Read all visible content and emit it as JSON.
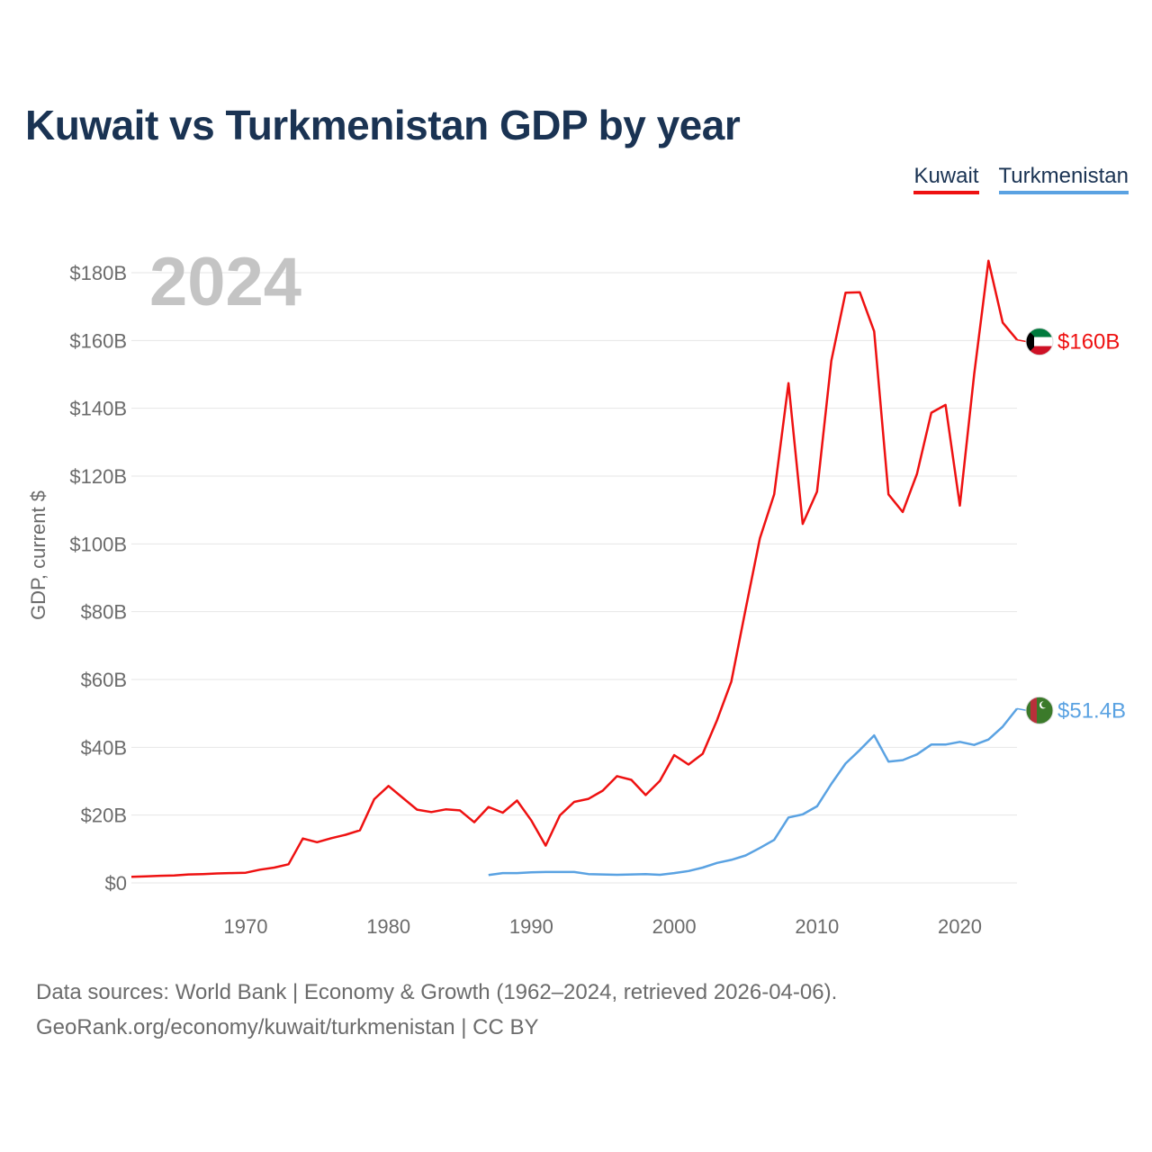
{
  "title": "Kuwait vs Turkmenistan GDP by year",
  "legend": [
    {
      "name": "Kuwait",
      "color": "#ee1111"
    },
    {
      "name": "Turkmenistan",
      "color": "#5aa2e2"
    }
  ],
  "year_label": "2024",
  "footer": {
    "line1": "Data sources: World Bank | Economy & Growth (1962–2024, retrieved 2026-04-06).",
    "line2": "GeoRank.org/economy/kuwait/turkmenistan | CC BY"
  },
  "chart_data": {
    "type": "line",
    "title": "Kuwait vs Turkmenistan GDP by year",
    "xlabel": "",
    "ylabel": "GDP, current $",
    "xlim": [
      1962,
      2024
    ],
    "ylim": [
      0,
      180
    ],
    "grid": true,
    "legend_position": "top-right",
    "x_ticks": [
      1970,
      1980,
      1990,
      2000,
      2010,
      2020
    ],
    "y_ticks": [
      0,
      20,
      40,
      60,
      80,
      100,
      120,
      140,
      160,
      180
    ],
    "y_tick_labels": [
      "$0",
      "$20B",
      "$40B",
      "$60B",
      "$80B",
      "$100B",
      "$120B",
      "$140B",
      "$160B",
      "$180B"
    ],
    "series": [
      {
        "name": "Kuwait",
        "color": "#ee1111",
        "end_label": "$160B",
        "x": [
          1962,
          1963,
          1964,
          1965,
          1966,
          1967,
          1968,
          1969,
          1970,
          1971,
          1972,
          1973,
          1974,
          1975,
          1976,
          1977,
          1978,
          1979,
          1980,
          1981,
          1982,
          1983,
          1984,
          1985,
          1986,
          1987,
          1988,
          1989,
          1990,
          1991,
          1992,
          1993,
          1994,
          1995,
          1996,
          1997,
          1998,
          1999,
          2000,
          2001,
          2002,
          2003,
          2004,
          2005,
          2006,
          2007,
          2008,
          2009,
          2010,
          2011,
          2012,
          2013,
          2014,
          2015,
          2016,
          2017,
          2018,
          2019,
          2020,
          2021,
          2022,
          2023,
          2024
        ],
        "values": [
          1.8,
          1.9,
          2.1,
          2.2,
          2.5,
          2.6,
          2.8,
          2.9,
          3.0,
          3.9,
          4.5,
          5.5,
          13.1,
          12.0,
          13.2,
          14.2,
          15.5,
          24.7,
          28.6,
          25.1,
          21.6,
          20.9,
          21.7,
          21.4,
          17.9,
          22.4,
          20.7,
          24.3,
          18.4,
          11.0,
          19.9,
          23.9,
          24.8,
          27.2,
          31.5,
          30.4,
          25.9,
          30.1,
          37.7,
          34.9,
          38.1,
          48.0,
          59.4,
          80.8,
          101.6,
          114.6,
          147.4,
          105.9,
          115.4,
          154.0,
          174.1,
          174.2,
          162.7,
          114.6,
          109.4,
          120.7,
          138.7,
          141.0,
          111.3,
          150.0,
          183.5,
          165.3,
          160.2
        ]
      },
      {
        "name": "Turkmenistan",
        "color": "#5aa2e2",
        "end_label": "$51.4B",
        "x": [
          1987,
          1988,
          1989,
          1990,
          1991,
          1992,
          1993,
          1994,
          1995,
          1996,
          1997,
          1998,
          1999,
          2000,
          2001,
          2002,
          2003,
          2004,
          2005,
          2006,
          2007,
          2008,
          2009,
          2010,
          2011,
          2012,
          2013,
          2014,
          2015,
          2016,
          2017,
          2018,
          2019,
          2020,
          2021,
          2022,
          2023,
          2024
        ],
        "values": [
          2.3,
          2.9,
          2.9,
          3.1,
          3.2,
          3.2,
          3.2,
          2.6,
          2.5,
          2.4,
          2.5,
          2.6,
          2.4,
          2.9,
          3.5,
          4.5,
          5.9,
          6.8,
          8.1,
          10.3,
          12.7,
          19.3,
          20.2,
          22.6,
          29.2,
          35.2,
          39.2,
          43.5,
          35.8,
          36.2,
          37.9,
          40.8,
          40.8,
          41.6,
          40.7,
          42.3,
          46.1,
          51.4
        ]
      }
    ]
  }
}
